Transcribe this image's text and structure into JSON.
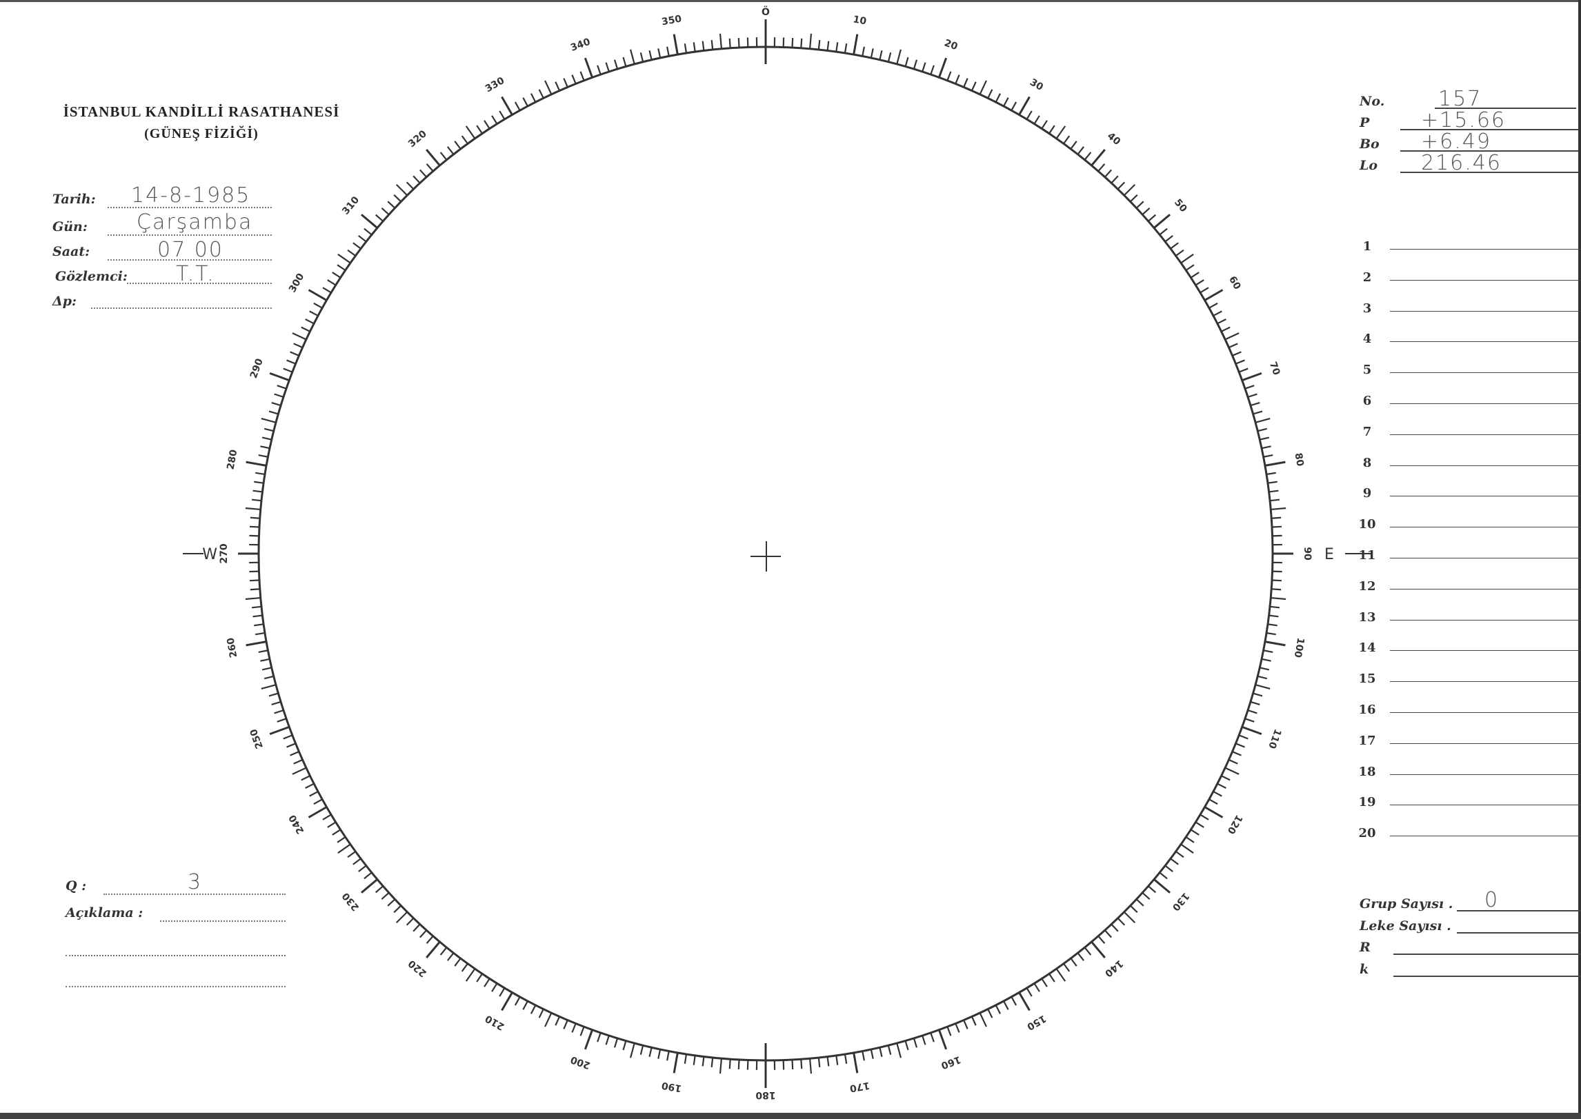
{
  "header": {
    "institution": "İSTANBUL KANDİLLİ RASATHANESİ",
    "department": "(GÜNEŞ FİZİĞİ)"
  },
  "observation": {
    "date_label": "Tarih:",
    "date_value": "14-8-1985",
    "day_label": "Gün:",
    "day_value": "Çarşamba",
    "time_label": "Saat:",
    "time_value": "07 00",
    "observer_label": "Gözlemci:",
    "observer_value": "T.T.",
    "delta_p_label": "Δp:",
    "delta_p_value": ""
  },
  "remarks": {
    "q_label": "Q :",
    "q_value": "3",
    "aciklama_label": "Açıklama :",
    "aciklama_value": ""
  },
  "solar_params": [
    {
      "label": "No.",
      "value": "157"
    },
    {
      "label": "P",
      "value": "+15.66"
    },
    {
      "label": "Bo",
      "value": "+6.49"
    },
    {
      "label": "Lo",
      "value": "216.46"
    }
  ],
  "numbered_lines": [
    "1",
    "2",
    "3",
    "4",
    "5",
    "6",
    "7",
    "8",
    "9",
    "10",
    "11",
    "12",
    "13",
    "14",
    "15",
    "16",
    "17",
    "18",
    "19",
    "20"
  ],
  "counts": [
    {
      "label": "Grup Sayısı .",
      "value": "0"
    },
    {
      "label": "Leke Sayısı .",
      "value": ""
    },
    {
      "label": "R",
      "value": ""
    },
    {
      "label": "k",
      "value": ""
    }
  ],
  "disk": {
    "degree_labels": [
      "Ö",
      "10",
      "20",
      "30",
      "40",
      "50",
      "60",
      "70",
      "80",
      "90",
      "100",
      "110",
      "120",
      "130",
      "140",
      "150",
      "160",
      "170",
      "180",
      "190",
      "200",
      "210",
      "220",
      "230",
      "240",
      "250",
      "260",
      "270",
      "280",
      "290",
      "300",
      "310",
      "320",
      "330",
      "340",
      "350"
    ],
    "east_label": "E",
    "west_label": "W",
    "ink_color": "#333333"
  }
}
